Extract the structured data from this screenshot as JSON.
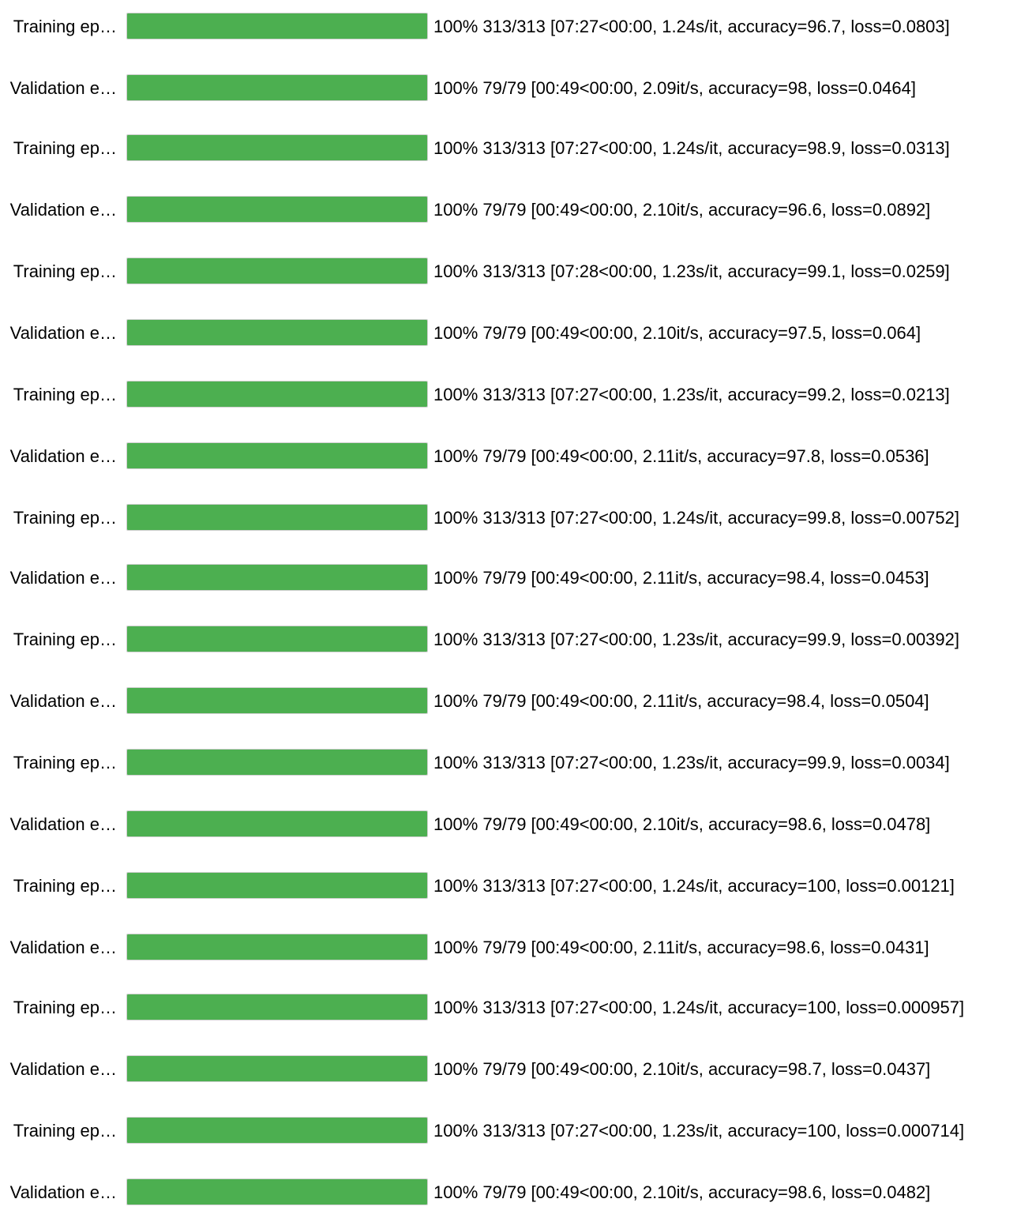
{
  "colors": {
    "bar_fill": "#4caf50",
    "bar_track": "#eeeeee",
    "text": "#000000",
    "background": "#ffffff"
  },
  "rows": [
    {
      "label": "Training ep…",
      "progress": 1.0,
      "status": "100% 313/313 [07:27<00:00, 1.24s/it, accuracy=96.7, loss=0.0803]"
    },
    {
      "label": "Validation e…",
      "progress": 1.0,
      "status": "100% 79/79 [00:49<00:00, 2.09it/s, accuracy=98, loss=0.0464]"
    },
    {
      "label": "Training ep…",
      "progress": 1.0,
      "status": "100% 313/313 [07:27<00:00, 1.24s/it, accuracy=98.9, loss=0.0313]"
    },
    {
      "label": "Validation e…",
      "progress": 1.0,
      "status": "100% 79/79 [00:49<00:00, 2.10it/s, accuracy=96.6, loss=0.0892]"
    },
    {
      "label": "Training ep…",
      "progress": 1.0,
      "status": "100% 313/313 [07:28<00:00, 1.23s/it, accuracy=99.1, loss=0.0259]"
    },
    {
      "label": "Validation e…",
      "progress": 1.0,
      "status": "100% 79/79 [00:49<00:00, 2.10it/s, accuracy=97.5, loss=0.064]"
    },
    {
      "label": "Training ep…",
      "progress": 1.0,
      "status": "100% 313/313 [07:27<00:00, 1.23s/it, accuracy=99.2, loss=0.0213]"
    },
    {
      "label": "Validation e…",
      "progress": 1.0,
      "status": "100% 79/79 [00:49<00:00, 2.11it/s, accuracy=97.8, loss=0.0536]"
    },
    {
      "label": "Training ep…",
      "progress": 1.0,
      "status": "100% 313/313 [07:27<00:00, 1.24s/it, accuracy=99.8, loss=0.00752]"
    },
    {
      "label": "Validation e…",
      "progress": 1.0,
      "status": "100% 79/79 [00:49<00:00, 2.11it/s, accuracy=98.4, loss=0.0453]"
    },
    {
      "label": "Training ep…",
      "progress": 1.0,
      "status": "100% 313/313 [07:27<00:00, 1.23s/it, accuracy=99.9, loss=0.00392]"
    },
    {
      "label": "Validation e…",
      "progress": 1.0,
      "status": "100% 79/79 [00:49<00:00, 2.11it/s, accuracy=98.4, loss=0.0504]"
    },
    {
      "label": "Training ep…",
      "progress": 1.0,
      "status": "100% 313/313 [07:27<00:00, 1.23s/it, accuracy=99.9, loss=0.0034]"
    },
    {
      "label": "Validation e…",
      "progress": 1.0,
      "status": "100% 79/79 [00:49<00:00, 2.10it/s, accuracy=98.6, loss=0.0478]"
    },
    {
      "label": "Training ep…",
      "progress": 1.0,
      "status": "100% 313/313 [07:27<00:00, 1.24s/it, accuracy=100, loss=0.00121]"
    },
    {
      "label": "Validation e…",
      "progress": 1.0,
      "status": "100% 79/79 [00:49<00:00, 2.11it/s, accuracy=98.6, loss=0.0431]"
    },
    {
      "label": "Training ep…",
      "progress": 1.0,
      "status": "100% 313/313 [07:27<00:00, 1.24s/it, accuracy=100, loss=0.000957]"
    },
    {
      "label": "Validation e…",
      "progress": 1.0,
      "status": "100% 79/79 [00:49<00:00, 2.10it/s, accuracy=98.7, loss=0.0437]"
    },
    {
      "label": "Training ep…",
      "progress": 1.0,
      "status": "100% 313/313 [07:27<00:00, 1.23s/it, accuracy=100, loss=0.000714]"
    },
    {
      "label": "Validation e…",
      "progress": 1.0,
      "status": "100% 79/79 [00:49<00:00, 2.10it/s, accuracy=98.6, loss=0.0482]"
    }
  ]
}
